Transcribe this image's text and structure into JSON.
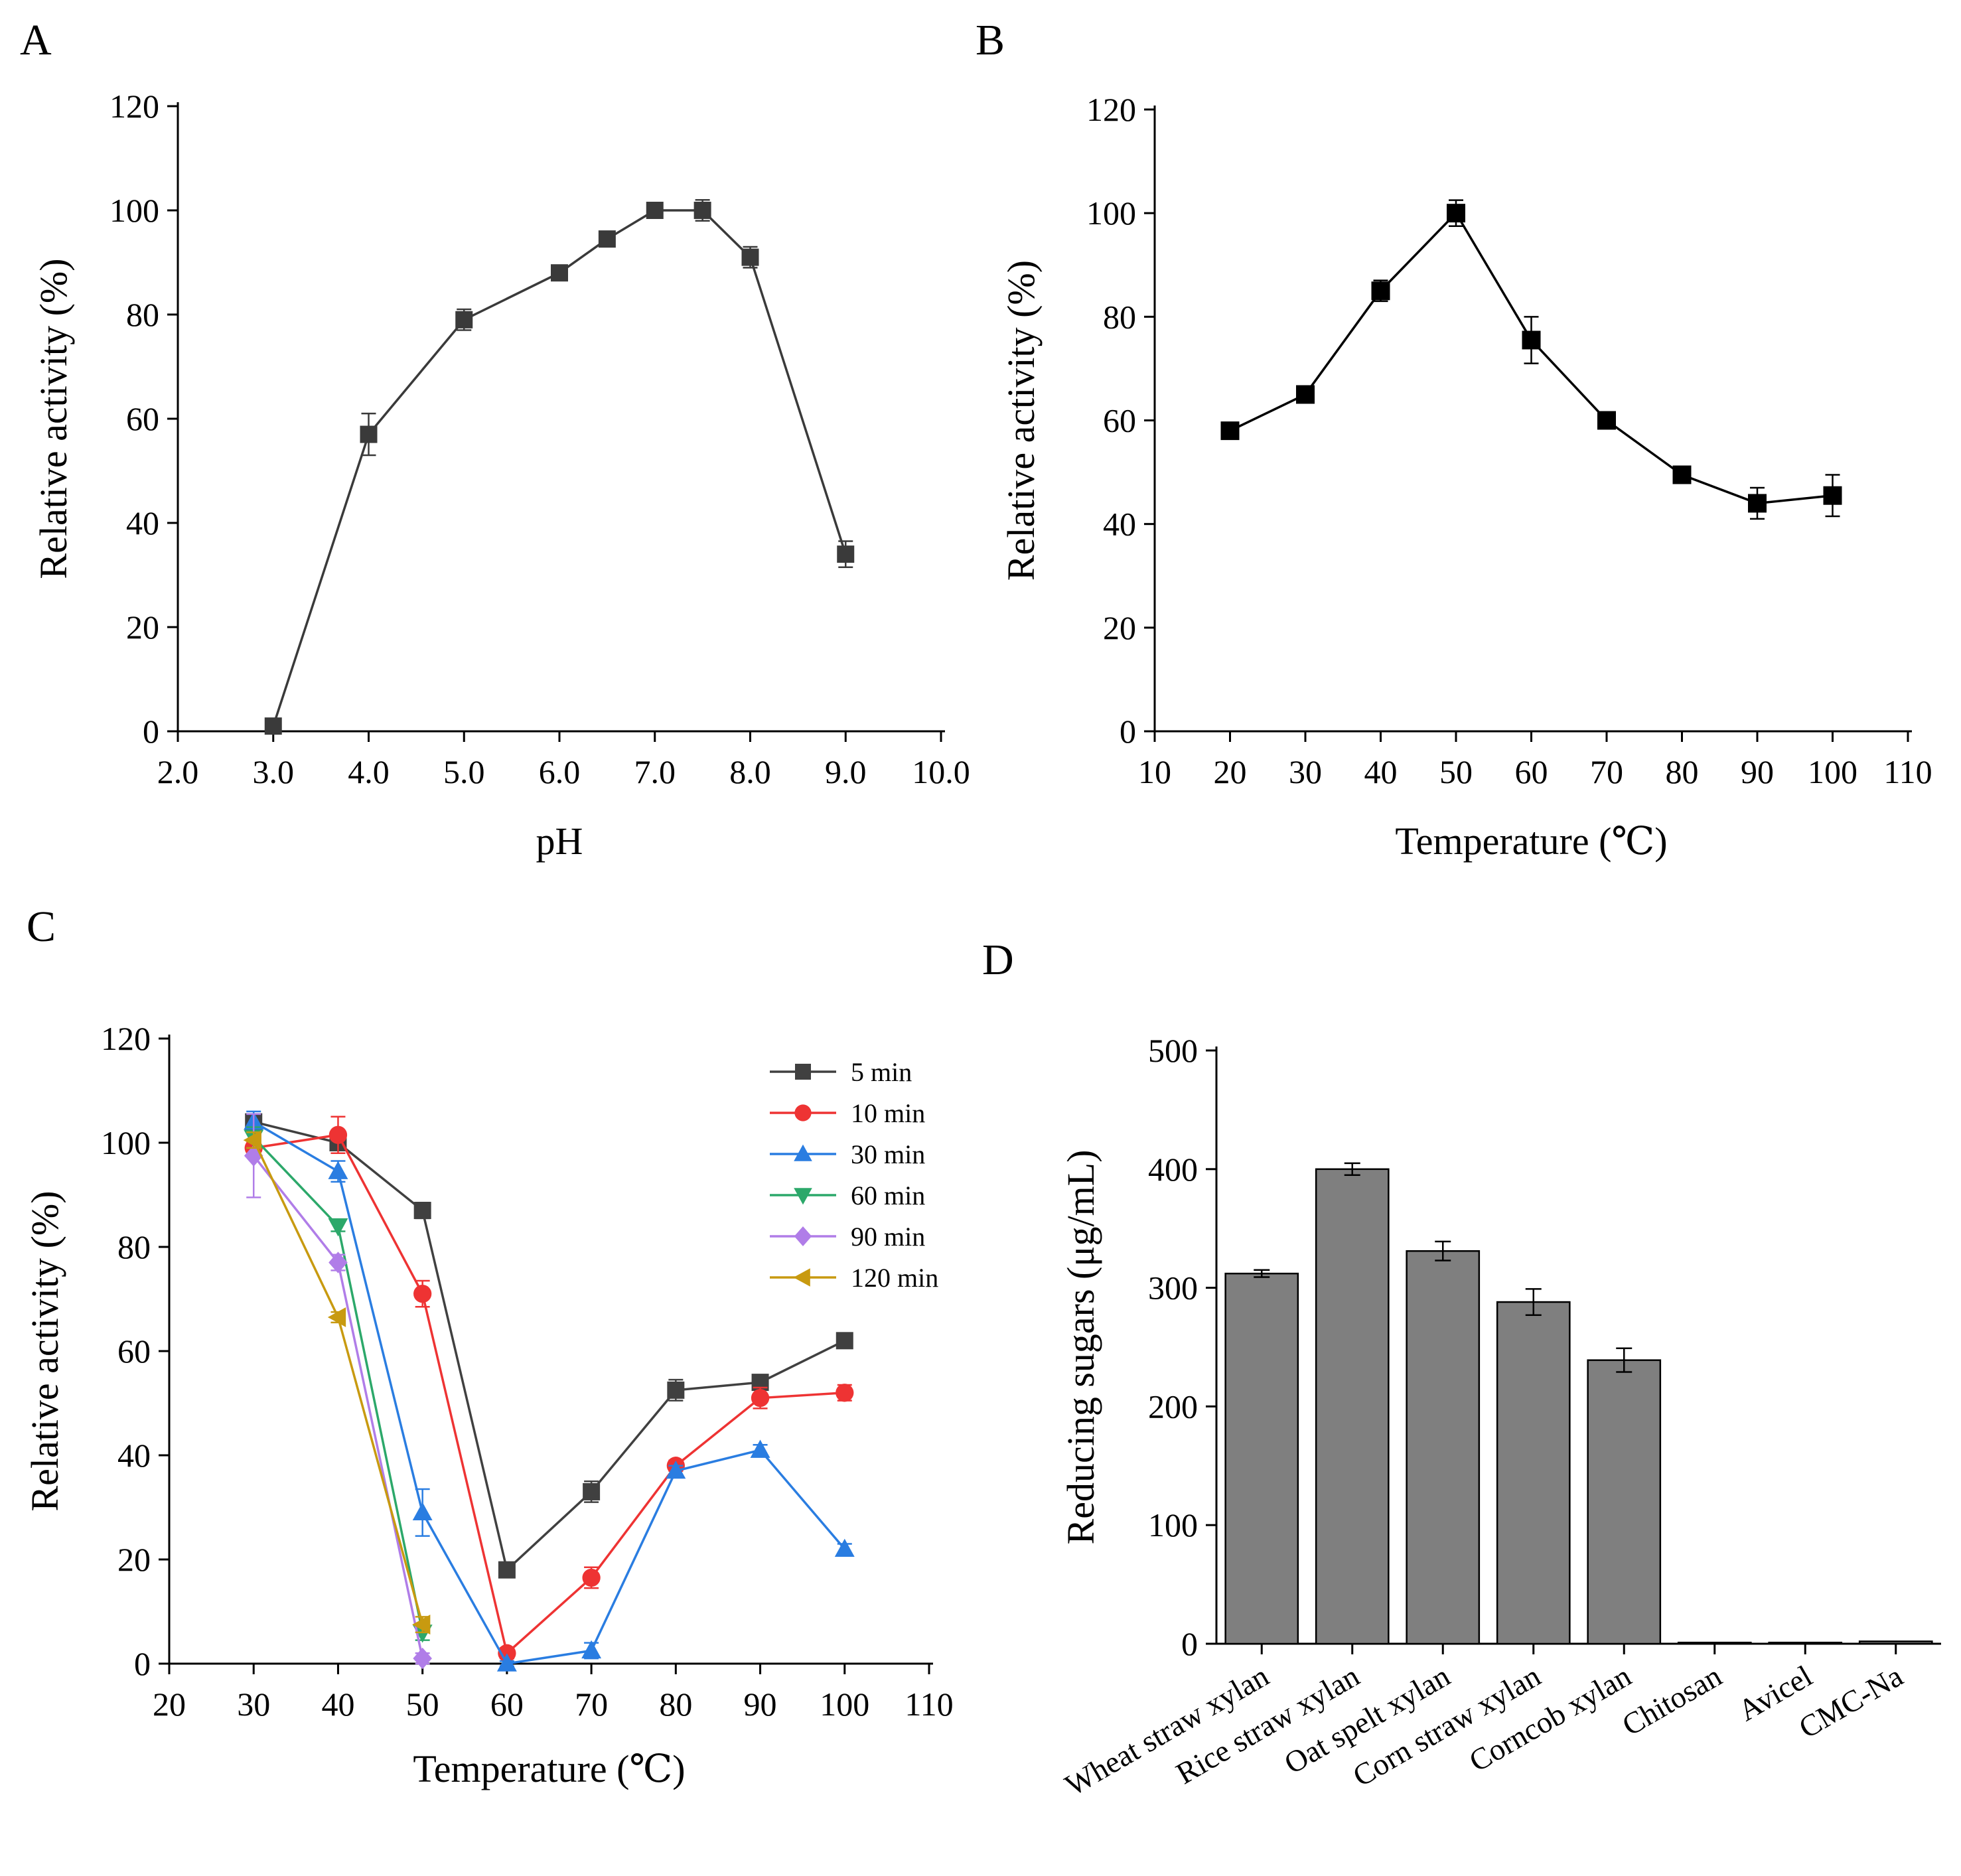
{
  "figure": {
    "panels": [
      {
        "id": "A",
        "label": "A"
      },
      {
        "id": "B",
        "label": "B"
      },
      {
        "id": "C",
        "label": "C"
      },
      {
        "id": "D",
        "label": "D"
      }
    ]
  },
  "colors": {
    "axis": "#000000",
    "A_series": "#3a3a3a",
    "B_series": "#000000",
    "bar_fill": "#7f7f7f",
    "c_5min": "#404040",
    "c_10min": "#ee3333",
    "c_30min": "#2a7de1",
    "c_60min": "#2ca86a",
    "c_90min": "#b07de8",
    "c_120min": "#c89a10"
  },
  "chart_data": [
    {
      "panel": "A",
      "type": "line",
      "xlabel": "pH",
      "ylabel": "Relative activity (%)",
      "xlim": [
        2.0,
        10.0
      ],
      "ylim": [
        0,
        120
      ],
      "xticks": [
        "2.0",
        "3.0",
        "4.0",
        "5.0",
        "6.0",
        "7.0",
        "8.0",
        "9.0",
        "10.0"
      ],
      "yticks": [
        "0",
        "20",
        "40",
        "60",
        "80",
        "100",
        "120"
      ],
      "grid": false,
      "series": [
        {
          "marker": "square",
          "points": [
            {
              "x": 3.0,
              "y": 1,
              "err": 0.5
            },
            {
              "x": 4.0,
              "y": 57,
              "err": 4
            },
            {
              "x": 5.0,
              "y": 79,
              "err": 2
            },
            {
              "x": 6.0,
              "y": 88,
              "err": 1
            },
            {
              "x": 6.5,
              "y": 94.5,
              "err": 1
            },
            {
              "x": 7.0,
              "y": 100,
              "err": 1
            },
            {
              "x": 7.5,
              "y": 100,
              "err": 2
            },
            {
              "x": 8.0,
              "y": 91,
              "err": 2
            },
            {
              "x": 9.0,
              "y": 34,
              "err": 2.5
            }
          ]
        }
      ]
    },
    {
      "panel": "B",
      "type": "line",
      "xlabel": "Temperature (℃)",
      "ylabel": "Relative activity (%)",
      "xlim": [
        10,
        110
      ],
      "ylim": [
        0,
        120
      ],
      "xticks": [
        "10",
        "20",
        "30",
        "40",
        "50",
        "60",
        "70",
        "80",
        "90",
        "100",
        "110"
      ],
      "yticks": [
        "0",
        "20",
        "40",
        "60",
        "80",
        "100",
        "120"
      ],
      "grid": false,
      "series": [
        {
          "marker": "square",
          "points": [
            {
              "x": 20,
              "y": 58,
              "err": 1
            },
            {
              "x": 30,
              "y": 65,
              "err": 1
            },
            {
              "x": 40,
              "y": 85,
              "err": 2
            },
            {
              "x": 50,
              "y": 100,
              "err": 2.5
            },
            {
              "x": 60,
              "y": 75.5,
              "err": 4.5
            },
            {
              "x": 70,
              "y": 60,
              "err": 1
            },
            {
              "x": 80,
              "y": 49.5,
              "err": 1
            },
            {
              "x": 90,
              "y": 44,
              "err": 3
            },
            {
              "x": 100,
              "y": 45.5,
              "err": 4
            }
          ]
        }
      ]
    },
    {
      "panel": "C",
      "type": "line",
      "xlabel": "Temperature (℃)",
      "ylabel": "Relative activity (%)",
      "xlim": [
        20,
        110
      ],
      "ylim": [
        0,
        120
      ],
      "xticks": [
        "20",
        "30",
        "40",
        "50",
        "60",
        "70",
        "80",
        "90",
        "100",
        "110"
      ],
      "yticks": [
        "0",
        "20",
        "40",
        "60",
        "80",
        "100",
        "120"
      ],
      "grid": false,
      "legend": "top-right",
      "series": [
        {
          "name": "5 min",
          "marker": "square",
          "colorKey": "c_5min",
          "points": [
            {
              "x": 30,
              "y": 104,
              "err": 1.5
            },
            {
              "x": 40,
              "y": 100,
              "err": 1
            },
            {
              "x": 50,
              "y": 87,
              "err": 1.5
            },
            {
              "x": 60,
              "y": 18,
              "err": 1
            },
            {
              "x": 70,
              "y": 33,
              "err": 2
            },
            {
              "x": 80,
              "y": 52.5,
              "err": 2
            },
            {
              "x": 90,
              "y": 54,
              "err": 1
            },
            {
              "x": 100,
              "y": 62,
              "err": 1
            }
          ]
        },
        {
          "name": "10 min",
          "marker": "circle",
          "colorKey": "c_10min",
          "points": [
            {
              "x": 30,
              "y": 99,
              "err": 1
            },
            {
              "x": 40,
              "y": 101.5,
              "err": 3.5
            },
            {
              "x": 50,
              "y": 71,
              "err": 2.5
            },
            {
              "x": 60,
              "y": 2,
              "err": 1
            },
            {
              "x": 70,
              "y": 16.5,
              "err": 2
            },
            {
              "x": 80,
              "y": 38,
              "err": 1
            },
            {
              "x": 90,
              "y": 51,
              "err": 2
            },
            {
              "x": 100,
              "y": 52,
              "err": 1.5
            }
          ]
        },
        {
          "name": "30 min",
          "marker": "triangle-up",
          "colorKey": "c_30min",
          "points": [
            {
              "x": 30,
              "y": 104,
              "err": 2
            },
            {
              "x": 40,
              "y": 94.5,
              "err": 2
            },
            {
              "x": 50,
              "y": 29,
              "err": 4.5
            },
            {
              "x": 60,
              "y": 0,
              "err": 0.5
            },
            {
              "x": 70,
              "y": 2.5,
              "err": 1.5
            },
            {
              "x": 80,
              "y": 37,
              "err": 1
            },
            {
              "x": 90,
              "y": 41,
              "err": 1
            },
            {
              "x": 100,
              "y": 22,
              "err": 1
            }
          ]
        },
        {
          "name": "60 min",
          "marker": "triangle-down",
          "colorKey": "c_60min",
          "points": [
            {
              "x": 30,
              "y": 101,
              "err": 2
            },
            {
              "x": 40,
              "y": 84,
              "err": 1
            },
            {
              "x": 50,
              "y": 6,
              "err": 1.5
            }
          ]
        },
        {
          "name": "90 min",
          "marker": "diamond",
          "colorKey": "c_90min",
          "points": [
            {
              "x": 30,
              "y": 97.5,
              "err": 8
            },
            {
              "x": 40,
              "y": 77,
              "err": 1.5
            },
            {
              "x": 50,
              "y": 1,
              "err": 1
            }
          ]
        },
        {
          "name": "120 min",
          "marker": "triangle-left",
          "colorKey": "c_120min",
          "points": [
            {
              "x": 30,
              "y": 100.5,
              "err": 1.5
            },
            {
              "x": 40,
              "y": 66.5,
              "err": 1
            },
            {
              "x": 50,
              "y": 7.5,
              "err": 1.5
            }
          ]
        }
      ]
    },
    {
      "panel": "D",
      "type": "bar",
      "xlabel": "",
      "ylabel": "Reducing sugars (μg/mL)",
      "ylim": [
        0,
        500
      ],
      "yticks": [
        "0",
        "100",
        "200",
        "300",
        "400",
        "500"
      ],
      "grid": false,
      "categories": [
        "Wheat straw xylan",
        "Rice straw xylan",
        "Oat spelt xylan",
        "Corn straw xylan",
        "Corncob xylan",
        "Chitosan",
        "Avicel",
        "CMC-Na"
      ],
      "values": [
        312,
        400,
        331,
        288,
        239,
        1,
        1,
        2
      ],
      "errors": [
        3,
        5,
        8,
        11,
        10,
        0.5,
        0.5,
        0.8
      ]
    }
  ]
}
